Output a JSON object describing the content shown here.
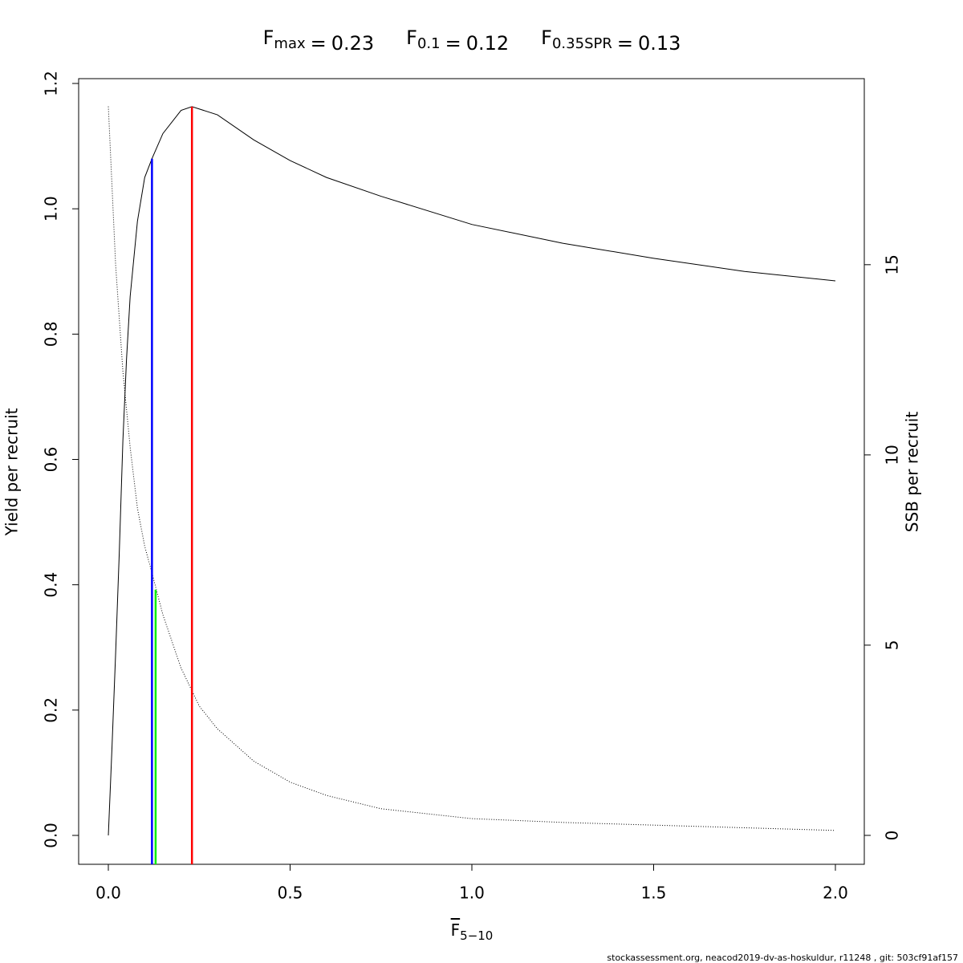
{
  "chart_data": {
    "type": "line",
    "reference_lines": [
      {
        "symbol": "F",
        "subscript": "max",
        "sign": "=",
        "x": 0.23,
        "y_top": 1.163,
        "axis": "y",
        "color": "#ff0000"
      },
      {
        "symbol": "F",
        "subscript": "0.1",
        "sign": "=",
        "x": 0.12,
        "y_top": 1.08,
        "axis": "y",
        "color": "#0000ff"
      },
      {
        "symbol": "F",
        "subscript": "0.35SPR",
        "sign": "=",
        "x": 0.13,
        "y_top": 6.46,
        "axis": "y2",
        "color": "#00ee00"
      }
    ],
    "xlabel": {
      "main": "F",
      "subscript": "5−10"
    },
    "ylabel": "Yield per recruit",
    "y2label": "SSB per recruit",
    "footer": "stockassessment.org, neacod2019-dv-as-hoskuldur, r11248 , git: 503cf91af157",
    "xlim": [
      -0.0817,
      2.0795
    ],
    "ylim": [
      -0.0461,
      1.2077
    ],
    "y2lim": [
      -0.76,
      19.89
    ],
    "xticks": [
      {
        "value": 0,
        "label": "0.0"
      },
      0.5,
      {
        "value": 1,
        "label": "1.0"
      },
      1.5,
      {
        "value": 2,
        "label": "2.0"
      }
    ],
    "yticks": [
      {
        "value": 0,
        "label": "0.0"
      },
      0.2,
      0.4,
      0.6,
      0.8,
      {
        "value": 1,
        "label": "1.0"
      },
      1.2
    ],
    "y2ticks": [
      0,
      5,
      10,
      15
    ],
    "series": [
      {
        "name": "Yield per recruit",
        "color": "#000000",
        "dash": "solid",
        "axis": "y",
        "x": [
          0,
          0.01,
          0.02,
          0.03,
          0.04,
          0.05,
          0.06,
          0.08,
          0.1,
          0.12,
          0.15,
          0.2,
          0.23,
          0.3,
          0.4,
          0.5,
          0.6,
          0.75,
          1.0,
          1.25,
          1.5,
          1.75,
          2.0
        ],
        "values": [
          0,
          0.14,
          0.29,
          0.45,
          0.63,
          0.76,
          0.86,
          0.98,
          1.05,
          1.08,
          1.12,
          1.157,
          1.163,
          1.15,
          1.11,
          1.077,
          1.05,
          1.02,
          0.975,
          0.945,
          0.921,
          0.9,
          0.885
        ]
      },
      {
        "name": "SSB per recruit",
        "color": "#000000",
        "dash": "dotted",
        "axis": "y2",
        "x": [
          0,
          0.02,
          0.04,
          0.06,
          0.08,
          0.1,
          0.12,
          0.15,
          0.2,
          0.25,
          0.3,
          0.4,
          0.5,
          0.6,
          0.75,
          1.0,
          1.25,
          1.5,
          1.75,
          2.0
        ],
        "values": [
          19.16,
          15.0,
          12.2,
          10.2,
          8.6,
          7.6,
          6.9,
          5.8,
          4.4,
          3.4,
          2.8,
          1.95,
          1.4,
          1.05,
          0.7,
          0.44,
          0.34,
          0.27,
          0.2,
          0.13
        ]
      }
    ]
  }
}
